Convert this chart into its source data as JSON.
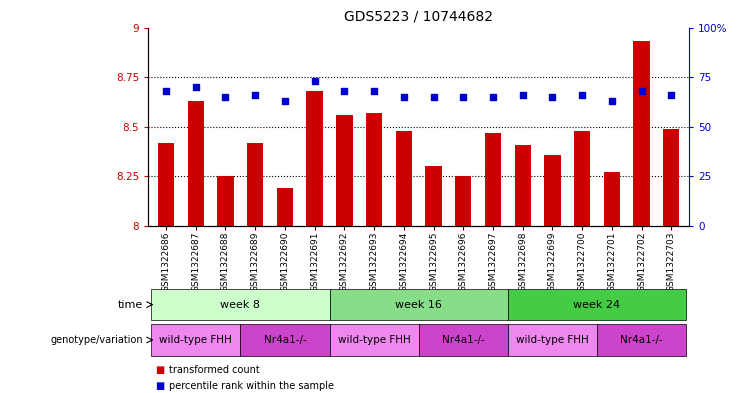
{
  "title": "GDS5223 / 10744682",
  "samples": [
    "GSM1322686",
    "GSM1322687",
    "GSM1322688",
    "GSM1322689",
    "GSM1322690",
    "GSM1322691",
    "GSM1322692",
    "GSM1322693",
    "GSM1322694",
    "GSM1322695",
    "GSM1322696",
    "GSM1322697",
    "GSM1322698",
    "GSM1322699",
    "GSM1322700",
    "GSM1322701",
    "GSM1322702",
    "GSM1322703"
  ],
  "transformed_count": [
    8.42,
    8.63,
    8.25,
    8.42,
    8.19,
    8.68,
    8.56,
    8.57,
    8.48,
    8.3,
    8.25,
    8.47,
    8.41,
    8.36,
    8.48,
    8.27,
    8.93,
    8.49
  ],
  "percentile_rank": [
    68,
    70,
    65,
    66,
    63,
    73,
    68,
    68,
    65,
    65,
    65,
    65,
    66,
    65,
    66,
    63,
    68,
    66
  ],
  "bar_color": "#cc0000",
  "dot_color": "#0000cc",
  "ylim_left": [
    8.0,
    9.0
  ],
  "ylim_right": [
    0,
    100
  ],
  "yticks_left": [
    8.0,
    8.25,
    8.5,
    8.75,
    9.0
  ],
  "ytick_labels_left": [
    "8",
    "8.25",
    "8.5",
    "8.75",
    "9"
  ],
  "yticks_right": [
    0,
    25,
    50,
    75,
    100
  ],
  "ytick_labels_right": [
    "0",
    "25",
    "50",
    "75",
    "100%"
  ],
  "hlines": [
    8.25,
    8.5,
    8.75
  ],
  "time_groups": [
    {
      "label": "week 8",
      "start": 0,
      "end": 5,
      "color": "#ccffcc"
    },
    {
      "label": "week 16",
      "start": 6,
      "end": 11,
      "color": "#88dd88"
    },
    {
      "label": "week 24",
      "start": 12,
      "end": 17,
      "color": "#44cc44"
    }
  ],
  "genotype_groups": [
    {
      "label": "wild-type FHH",
      "start": 0,
      "end": 2,
      "color": "#ee88ee"
    },
    {
      "label": "Nr4a1-/-",
      "start": 3,
      "end": 5,
      "color": "#cc44cc"
    },
    {
      "label": "wild-type FHH",
      "start": 6,
      "end": 8,
      "color": "#ee88ee"
    },
    {
      "label": "Nr4a1-/-",
      "start": 9,
      "end": 11,
      "color": "#cc44cc"
    },
    {
      "label": "wild-type FHH",
      "start": 12,
      "end": 14,
      "color": "#ee88ee"
    },
    {
      "label": "Nr4a1-/-",
      "start": 15,
      "end": 17,
      "color": "#cc44cc"
    }
  ],
  "legend_items": [
    {
      "label": "transformed count",
      "color": "#cc0000"
    },
    {
      "label": "percentile rank within the sample",
      "color": "#0000cc"
    }
  ],
  "bg_color": "#ffffff",
  "axis_color_left": "#cc0000",
  "axis_color_right": "#0000cc"
}
